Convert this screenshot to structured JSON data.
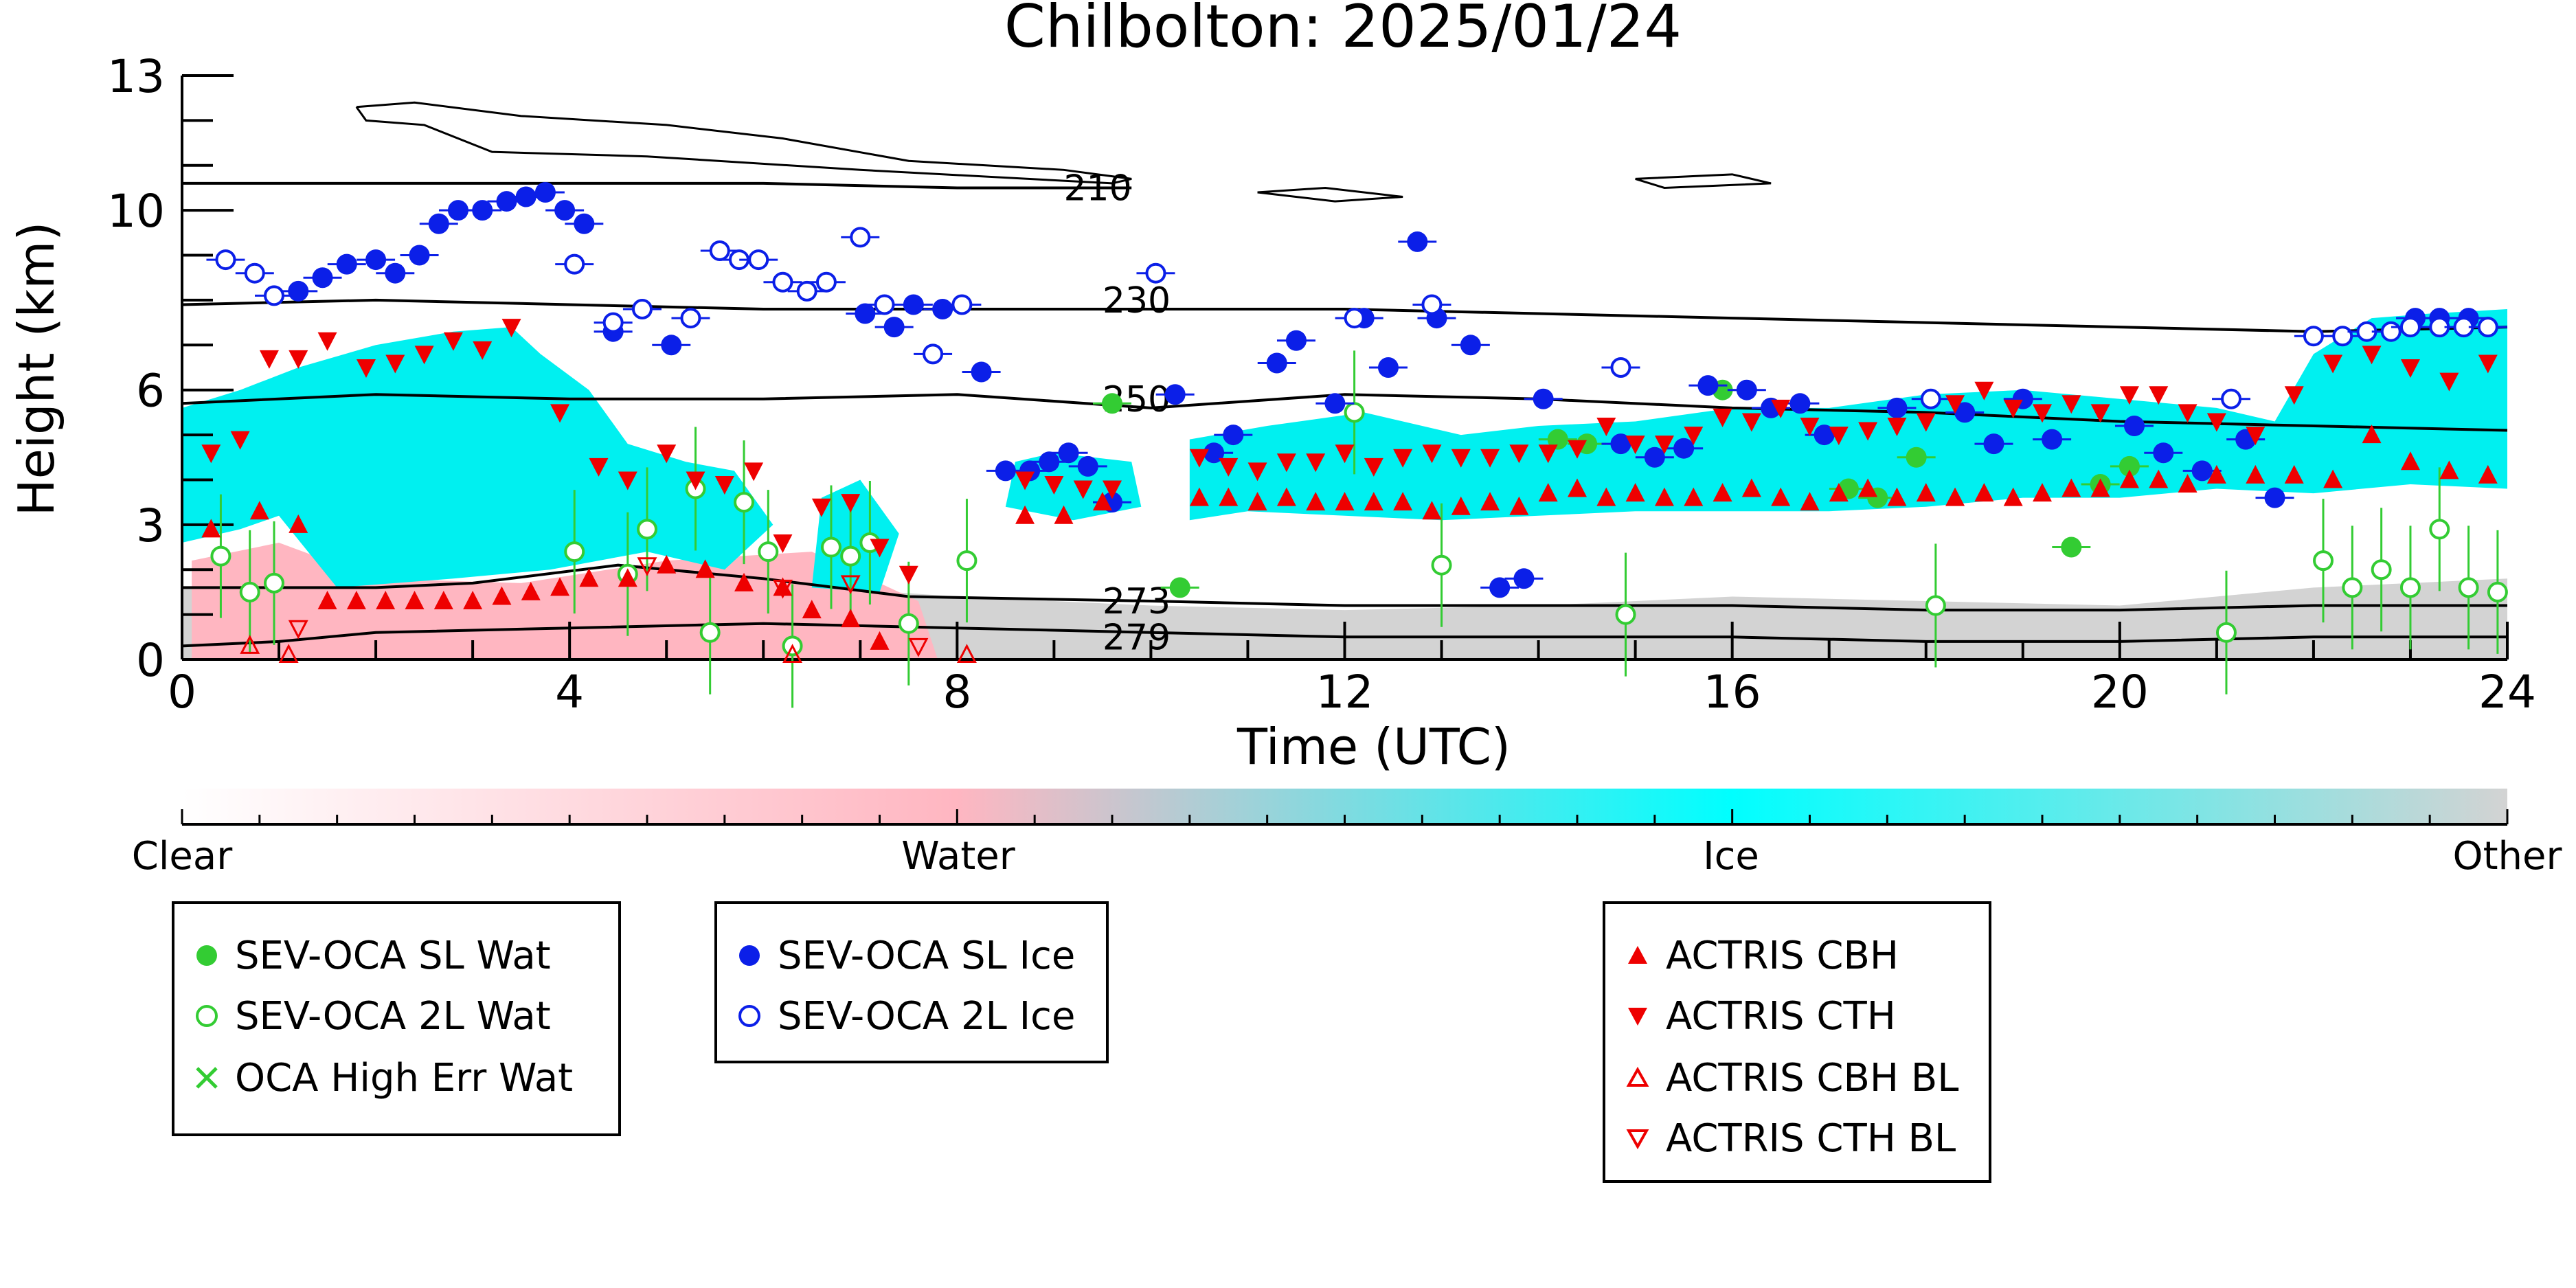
{
  "chart_data": {
    "type": "scatter",
    "title": "Chilbolton: 2025/01/24",
    "xlabel": "Time (UTC)",
    "ylabel": "Height (km)",
    "xlim": [
      0,
      24
    ],
    "ylim": [
      0,
      13
    ],
    "xticks": [
      "0",
      "4",
      "8",
      "12",
      "16",
      "20",
      "24"
    ],
    "yticks": [
      "0",
      "3",
      "6",
      "10",
      "13"
    ],
    "contour_labels": [
      {
        "text": "210",
        "x": 9.1,
        "y": 10.5
      },
      {
        "text": "230",
        "x": 9.5,
        "y": 8.0
      },
      {
        "text": "250",
        "x": 9.5,
        "y": 5.8
      },
      {
        "text": "273",
        "x": 9.5,
        "y": 1.3
      },
      {
        "text": "279",
        "x": 9.5,
        "y": 0.5
      }
    ],
    "colorbar": {
      "labels": [
        "Clear",
        "Water",
        "Ice",
        "Other"
      ],
      "colors": [
        "#ffffff",
        "#ffb6c1",
        "#00ffff",
        "#d3d3d3"
      ]
    },
    "colors": {
      "water": "#33cc33",
      "ice": "#0b1fe8",
      "actris": "#ee0000",
      "cloud_ice": "#00f0f0",
      "cloud_water": "#ffb6c1",
      "cloud_other": "#d3d3d3"
    },
    "series": [
      {
        "name": "SEV-OCA SL Wat",
        "points": [
          [
            9.6,
            5.7
          ],
          [
            10.3,
            1.6
          ],
          [
            14.2,
            4.9
          ],
          [
            14.5,
            4.8
          ],
          [
            15.9,
            6.0
          ],
          [
            17.2,
            3.8
          ],
          [
            17.5,
            3.6
          ],
          [
            17.9,
            4.5
          ],
          [
            19.5,
            2.5
          ],
          [
            19.8,
            3.9
          ],
          [
            20.1,
            4.3
          ]
        ]
      },
      {
        "name": "SEV-OCA 2L Wat",
        "points": [
          [
            0.4,
            2.3
          ],
          [
            0.7,
            1.5
          ],
          [
            0.95,
            1.7
          ],
          [
            4.05,
            2.4
          ],
          [
            4.6,
            1.9
          ],
          [
            4.8,
            2.9
          ],
          [
            5.3,
            3.8
          ],
          [
            5.45,
            0.6
          ],
          [
            5.8,
            3.5
          ],
          [
            6.05,
            2.4
          ],
          [
            6.3,
            0.3
          ],
          [
            6.7,
            2.5
          ],
          [
            6.9,
            2.3
          ],
          [
            7.1,
            2.6
          ],
          [
            7.5,
            0.8
          ],
          [
            8.1,
            2.2
          ],
          [
            12.1,
            5.5
          ],
          [
            13.0,
            2.1
          ],
          [
            14.9,
            1.0
          ],
          [
            18.1,
            1.2
          ],
          [
            21.1,
            0.6
          ],
          [
            22.1,
            2.2
          ],
          [
            22.4,
            1.6
          ],
          [
            22.7,
            2.0
          ],
          [
            23.0,
            1.6
          ],
          [
            23.3,
            2.9
          ],
          [
            23.6,
            1.6
          ],
          [
            23.9,
            1.5
          ]
        ]
      },
      {
        "name": "OCA High Err Wat",
        "points": []
      },
      {
        "name": "SEV-OCA SL Ice",
        "points": [
          [
            1.2,
            8.2
          ],
          [
            1.45,
            8.5
          ],
          [
            1.7,
            8.8
          ],
          [
            2.0,
            8.9
          ],
          [
            2.2,
            8.6
          ],
          [
            2.45,
            9.0
          ],
          [
            2.65,
            9.7
          ],
          [
            2.85,
            10.0
          ],
          [
            3.1,
            10.0
          ],
          [
            3.35,
            10.2
          ],
          [
            3.55,
            10.3
          ],
          [
            3.75,
            10.4
          ],
          [
            3.95,
            10.0
          ],
          [
            4.15,
            9.7
          ],
          [
            4.45,
            7.3
          ],
          [
            5.05,
            7.0
          ],
          [
            7.05,
            7.7
          ],
          [
            7.35,
            7.4
          ],
          [
            7.55,
            7.9
          ],
          [
            7.85,
            7.8
          ],
          [
            8.25,
            6.4
          ],
          [
            8.5,
            4.2
          ],
          [
            8.75,
            4.2
          ],
          [
            8.95,
            4.4
          ],
          [
            9.15,
            4.6
          ],
          [
            9.35,
            4.3
          ],
          [
            9.6,
            3.5
          ],
          [
            10.25,
            5.9
          ],
          [
            10.65,
            4.6
          ],
          [
            10.85,
            5.0
          ],
          [
            11.3,
            6.6
          ],
          [
            11.5,
            7.1
          ],
          [
            11.9,
            5.7
          ],
          [
            12.2,
            7.6
          ],
          [
            12.45,
            6.5
          ],
          [
            12.75,
            9.3
          ],
          [
            12.95,
            7.6
          ],
          [
            13.3,
            7.0
          ],
          [
            13.6,
            1.6
          ],
          [
            13.85,
            1.8
          ],
          [
            14.05,
            5.8
          ],
          [
            14.85,
            4.8
          ],
          [
            15.2,
            4.5
          ],
          [
            15.5,
            4.7
          ],
          [
            15.75,
            6.1
          ],
          [
            16.15,
            6.0
          ],
          [
            16.4,
            5.6
          ],
          [
            16.7,
            5.7
          ],
          [
            16.95,
            5.0
          ],
          [
            17.7,
            5.6
          ],
          [
            18.4,
            5.5
          ],
          [
            18.7,
            4.8
          ],
          [
            19.0,
            5.8
          ],
          [
            19.3,
            4.9
          ],
          [
            20.15,
            5.2
          ],
          [
            20.45,
            4.6
          ],
          [
            20.85,
            4.2
          ],
          [
            21.3,
            4.9
          ],
          [
            21.6,
            3.6
          ],
          [
            23.05,
            7.6
          ],
          [
            23.3,
            7.6
          ],
          [
            23.6,
            7.6
          ]
        ]
      },
      {
        "name": "SEV-OCA 2L Ice",
        "points": [
          [
            0.45,
            8.9
          ],
          [
            0.75,
            8.6
          ],
          [
            0.95,
            8.1
          ],
          [
            4.05,
            8.8
          ],
          [
            4.45,
            7.5
          ],
          [
            4.75,
            7.8
          ],
          [
            5.25,
            7.6
          ],
          [
            5.55,
            9.1
          ],
          [
            5.75,
            8.9
          ],
          [
            5.95,
            8.9
          ],
          [
            6.2,
            8.4
          ],
          [
            6.45,
            8.2
          ],
          [
            6.65,
            8.4
          ],
          [
            7.0,
            9.4
          ],
          [
            7.25,
            7.9
          ],
          [
            7.75,
            6.8
          ],
          [
            8.05,
            7.9
          ],
          [
            10.05,
            8.6
          ],
          [
            12.1,
            7.6
          ],
          [
            12.9,
            7.9
          ],
          [
            14.85,
            6.5
          ],
          [
            18.05,
            5.8
          ],
          [
            21.15,
            5.8
          ],
          [
            22.0,
            7.2
          ],
          [
            22.3,
            7.2
          ],
          [
            22.55,
            7.3
          ],
          [
            22.8,
            7.3
          ],
          [
            23.0,
            7.4
          ],
          [
            23.3,
            7.4
          ],
          [
            23.55,
            7.4
          ],
          [
            23.8,
            7.4
          ]
        ]
      },
      {
        "name": "ACTRIS CBH",
        "points": [
          [
            0.3,
            2.9
          ],
          [
            0.8,
            3.3
          ],
          [
            1.2,
            3.0
          ],
          [
            1.5,
            1.3
          ],
          [
            1.8,
            1.3
          ],
          [
            2.1,
            1.3
          ],
          [
            2.4,
            1.3
          ],
          [
            2.7,
            1.3
          ],
          [
            3.0,
            1.3
          ],
          [
            3.3,
            1.4
          ],
          [
            3.6,
            1.5
          ],
          [
            3.9,
            1.6
          ],
          [
            4.2,
            1.8
          ],
          [
            4.6,
            1.8
          ],
          [
            5.0,
            2.1
          ],
          [
            5.4,
            2.0
          ],
          [
            5.8,
            1.7
          ],
          [
            6.2,
            1.6
          ],
          [
            6.5,
            1.1
          ],
          [
            6.9,
            0.9
          ],
          [
            7.2,
            0.4
          ],
          [
            8.7,
            3.2
          ],
          [
            9.1,
            3.2
          ],
          [
            9.5,
            3.5
          ],
          [
            10.5,
            3.6
          ],
          [
            10.8,
            3.6
          ],
          [
            11.1,
            3.5
          ],
          [
            11.4,
            3.6
          ],
          [
            11.7,
            3.5
          ],
          [
            12.0,
            3.5
          ],
          [
            12.3,
            3.5
          ],
          [
            12.6,
            3.5
          ],
          [
            12.9,
            3.3
          ],
          [
            13.2,
            3.4
          ],
          [
            13.5,
            3.5
          ],
          [
            13.8,
            3.4
          ],
          [
            14.1,
            3.7
          ],
          [
            14.4,
            3.8
          ],
          [
            14.7,
            3.6
          ],
          [
            15.0,
            3.7
          ],
          [
            15.3,
            3.6
          ],
          [
            15.6,
            3.6
          ],
          [
            15.9,
            3.7
          ],
          [
            16.2,
            3.8
          ],
          [
            16.5,
            3.6
          ],
          [
            16.8,
            3.5
          ],
          [
            17.1,
            3.7
          ],
          [
            17.4,
            3.8
          ],
          [
            17.7,
            3.6
          ],
          [
            18.0,
            3.7
          ],
          [
            18.3,
            3.6
          ],
          [
            18.6,
            3.7
          ],
          [
            18.9,
            3.6
          ],
          [
            19.2,
            3.7
          ],
          [
            19.5,
            3.8
          ],
          [
            19.8,
            3.8
          ],
          [
            20.1,
            4.0
          ],
          [
            20.4,
            4.0
          ],
          [
            20.7,
            3.9
          ],
          [
            21.0,
            4.1
          ],
          [
            21.4,
            4.1
          ],
          [
            21.8,
            4.1
          ],
          [
            22.2,
            4.0
          ],
          [
            22.6,
            5.0
          ],
          [
            23.0,
            4.4
          ],
          [
            23.4,
            4.2
          ],
          [
            23.8,
            4.1
          ]
        ]
      },
      {
        "name": "ACTRIS CTH",
        "points": [
          [
            0.3,
            4.6
          ],
          [
            0.6,
            4.9
          ],
          [
            0.9,
            6.7
          ],
          [
            1.2,
            6.7
          ],
          [
            1.5,
            7.1
          ],
          [
            1.9,
            6.5
          ],
          [
            2.2,
            6.6
          ],
          [
            2.5,
            6.8
          ],
          [
            2.8,
            7.1
          ],
          [
            3.1,
            6.9
          ],
          [
            3.4,
            7.4
          ],
          [
            3.9,
            5.5
          ],
          [
            4.3,
            4.3
          ],
          [
            4.6,
            4.0
          ],
          [
            5.0,
            4.6
          ],
          [
            5.3,
            4.0
          ],
          [
            5.6,
            3.9
          ],
          [
            5.9,
            4.2
          ],
          [
            6.2,
            2.6
          ],
          [
            6.6,
            3.4
          ],
          [
            6.9,
            3.5
          ],
          [
            7.2,
            2.5
          ],
          [
            7.5,
            1.9
          ],
          [
            8.7,
            4.0
          ],
          [
            9.0,
            3.9
          ],
          [
            9.3,
            3.8
          ],
          [
            9.6,
            3.8
          ],
          [
            10.5,
            4.5
          ],
          [
            10.8,
            4.3
          ],
          [
            11.1,
            4.2
          ],
          [
            11.4,
            4.4
          ],
          [
            11.7,
            4.4
          ],
          [
            12.0,
            4.6
          ],
          [
            12.3,
            4.3
          ],
          [
            12.6,
            4.5
          ],
          [
            12.9,
            4.6
          ],
          [
            13.2,
            4.5
          ],
          [
            13.5,
            4.5
          ],
          [
            13.8,
            4.6
          ],
          [
            14.1,
            4.6
          ],
          [
            14.4,
            4.7
          ],
          [
            14.7,
            5.2
          ],
          [
            15.0,
            4.8
          ],
          [
            15.3,
            4.8
          ],
          [
            15.6,
            5.0
          ],
          [
            15.9,
            5.4
          ],
          [
            16.2,
            5.3
          ],
          [
            16.5,
            5.6
          ],
          [
            16.8,
            5.2
          ],
          [
            17.1,
            5.0
          ],
          [
            17.4,
            5.1
          ],
          [
            17.7,
            5.2
          ],
          [
            18.0,
            5.3
          ],
          [
            18.3,
            5.7
          ],
          [
            18.6,
            6.0
          ],
          [
            18.9,
            5.6
          ],
          [
            19.2,
            5.5
          ],
          [
            19.5,
            5.7
          ],
          [
            19.8,
            5.5
          ],
          [
            20.1,
            5.9
          ],
          [
            20.4,
            5.9
          ],
          [
            20.7,
            5.5
          ],
          [
            21.0,
            5.3
          ],
          [
            21.4,
            5.0
          ],
          [
            21.8,
            5.9
          ],
          [
            22.2,
            6.6
          ],
          [
            22.6,
            6.8
          ],
          [
            23.0,
            6.5
          ],
          [
            23.4,
            6.2
          ],
          [
            23.8,
            6.6
          ]
        ]
      },
      {
        "name": "ACTRIS CBH BL",
        "points": [
          [
            0.7,
            0.3
          ],
          [
            1.1,
            0.1
          ],
          [
            6.3,
            0.1
          ],
          [
            8.1,
            0.1
          ]
        ]
      },
      {
        "name": "ACTRIS CTH BL",
        "points": [
          [
            1.2,
            0.7
          ],
          [
            4.8,
            2.1
          ],
          [
            6.2,
            1.6
          ],
          [
            6.9,
            1.7
          ],
          [
            7.6,
            0.3
          ]
        ]
      }
    ]
  }
}
